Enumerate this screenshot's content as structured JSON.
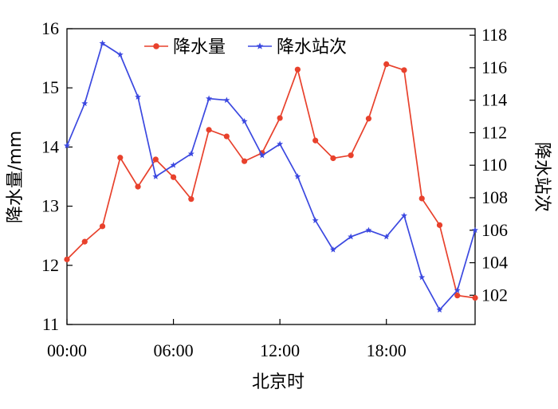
{
  "chart_data": {
    "type": "line",
    "xlabel": "北京时",
    "ylabel_left": "降水量/mm",
    "ylabel_right": "降水站次",
    "x_ticks": [
      "00:00",
      "06:00",
      "12:00",
      "18:00"
    ],
    "x": [
      0,
      1,
      2,
      3,
      4,
      5,
      6,
      7,
      8,
      9,
      10,
      11,
      12,
      13,
      14,
      15,
      16,
      17,
      18,
      19,
      20,
      21,
      22,
      23
    ],
    "xlim": [
      0,
      23
    ],
    "ylim_left": [
      11,
      16
    ],
    "ylim_right": [
      100.2,
      118.4
    ],
    "yticks_left": [
      "11",
      "12",
      "13",
      "14",
      "15",
      "16"
    ],
    "yticks_right": [
      "102",
      "104",
      "106",
      "108",
      "110",
      "112",
      "114",
      "116",
      "118"
    ],
    "legend_position": "top-center",
    "series": [
      {
        "name": "降水量",
        "axis": "left",
        "color": "#e8412c",
        "marker": "circle",
        "values": [
          12.1,
          12.4,
          12.66,
          13.82,
          13.33,
          13.79,
          13.49,
          13.12,
          14.29,
          14.18,
          13.76,
          13.9,
          14.49,
          15.31,
          14.11,
          13.81,
          13.86,
          14.48,
          15.4,
          15.3,
          13.13,
          12.68,
          11.49,
          11.45
        ]
      },
      {
        "name": "降水站次",
        "axis": "right",
        "color": "#3b48e0",
        "marker": "star",
        "values": [
          111.2,
          113.8,
          117.5,
          116.8,
          114.2,
          109.3,
          110.0,
          110.7,
          114.1,
          114.0,
          112.7,
          110.6,
          111.3,
          109.3,
          106.6,
          104.8,
          105.6,
          106.0,
          105.6,
          106.9,
          103.1,
          101.1,
          102.3,
          106.0
        ]
      }
    ]
  }
}
